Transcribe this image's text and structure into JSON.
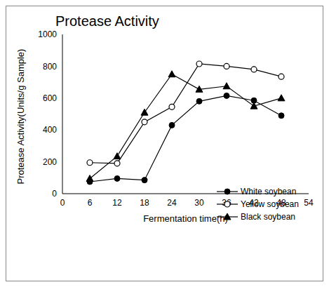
{
  "chart_data": {
    "type": "line",
    "title": "Protease Activity",
    "x_label": "Fermentation time(h)",
    "y_label": "Protease Activity(Units/g Sample)",
    "x": [
      6,
      12,
      18,
      24,
      30,
      36,
      42,
      48
    ],
    "series": [
      {
        "name": "White soybean",
        "color": "#000000",
        "marker": "circle",
        "values": [
          75,
          95,
          85,
          430,
          580,
          615,
          585,
          490
        ]
      },
      {
        "name": "Yellow soybean",
        "color": "#000000",
        "marker": "open_circle",
        "values": [
          195,
          190,
          450,
          545,
          815,
          800,
          780,
          735
        ]
      },
      {
        "name": "Black soybean",
        "color": "#000000",
        "marker": "triangle",
        "values": [
          95,
          235,
          510,
          750,
          655,
          675,
          550,
          600
        ]
      }
    ],
    "xlim": [
      0,
      54
    ],
    "xticks": [
      0,
      6,
      12,
      18,
      24,
      30,
      36,
      42,
      48,
      54
    ],
    "ylim": [
      0,
      1000
    ],
    "yticks": [
      0,
      200,
      400,
      600,
      800,
      1000
    ],
    "grid": false,
    "legend": "lower right"
  }
}
